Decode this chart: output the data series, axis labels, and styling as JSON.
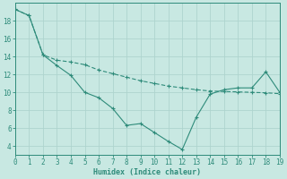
{
  "line1_x": [
    0,
    1,
    2,
    3,
    4,
    5,
    6,
    7,
    8,
    9,
    10,
    11,
    12,
    13,
    14,
    15,
    16,
    17,
    18,
    19
  ],
  "line1_y": [
    19.3,
    18.6,
    14.2,
    13.0,
    11.9,
    10.0,
    9.4,
    8.2,
    6.3,
    6.5,
    5.5,
    4.5,
    3.6,
    7.2,
    9.8,
    10.3,
    10.5,
    10.5,
    12.3,
    10.0
  ],
  "line2_x": [
    0,
    1,
    2,
    3,
    4,
    5,
    6,
    7,
    8,
    9,
    10,
    11,
    12,
    13,
    14,
    15,
    16,
    17,
    18,
    19
  ],
  "line2_y": [
    19.3,
    18.6,
    14.2,
    13.6,
    13.4,
    13.1,
    12.5,
    12.1,
    11.7,
    11.3,
    11.0,
    10.7,
    10.5,
    10.3,
    10.15,
    10.1,
    10.05,
    10.0,
    9.95,
    9.85
  ],
  "line_color": "#2e8b7a",
  "background_color": "#c8e8e2",
  "grid_color": "#aed4ce",
  "xlabel": "Humidex (Indice chaleur)",
  "xlim": [
    0,
    19
  ],
  "ylim": [
    3,
    20
  ],
  "yticks": [
    4,
    6,
    8,
    10,
    12,
    14,
    16,
    18
  ],
  "xticks": [
    0,
    1,
    2,
    3,
    4,
    5,
    6,
    7,
    8,
    9,
    10,
    11,
    12,
    13,
    14,
    15,
    16,
    17,
    18,
    19
  ],
  "tick_fontsize": 5.5,
  "xlabel_fontsize": 6.0
}
